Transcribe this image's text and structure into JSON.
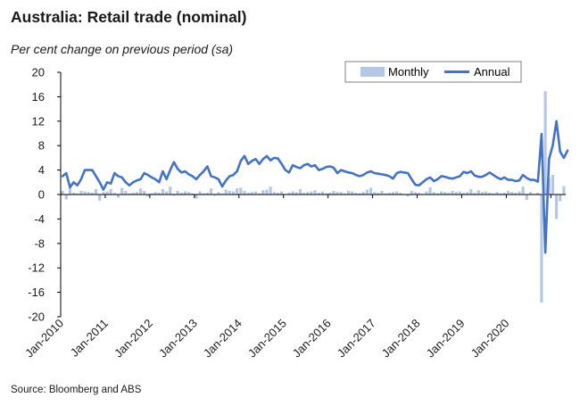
{
  "title": "Australia: Retail trade (nominal)",
  "subtitle": "Per cent change on previous period (sa)",
  "source": "Source: Bloomberg and ABS",
  "colors": {
    "monthly": "#b4c7e7",
    "annual": "#4472c4",
    "axis": "#000000"
  },
  "chart_data": {
    "type": "bar",
    "title": "Australia: Retail trade (nominal)",
    "ylabel": "Per cent change on previous period (sa)",
    "ylim": [
      -20,
      20
    ],
    "yticks": [
      20,
      16,
      12,
      8,
      4,
      0,
      -4,
      -8,
      -12,
      -16,
      -20
    ],
    "grid": false,
    "legend_position": "top-right",
    "x_start": "Jan-2010",
    "xtick_labels": [
      "Jan-2010",
      "Jan-2011",
      "Jan-2012",
      "Jan-2013",
      "Jan-2014",
      "Jan-2015",
      "Jan-2016",
      "Jan-2017",
      "Jan-2018",
      "Jan-2019",
      "Jan-2020"
    ],
    "series": [
      {
        "name": "Monthly",
        "type": "bar",
        "values": [
          0.6,
          -0.8,
          1.2,
          0.3,
          0.2,
          0.6,
          0.5,
          0.4,
          0.3,
          0.9,
          -1.0,
          0.4,
          0.5,
          0.9,
          0.3,
          -0.5,
          1.1,
          0.6,
          0.2,
          0.3,
          0.4,
          1.0,
          0.6,
          -0.3,
          0.2,
          0.4,
          0.3,
          0.9,
          0.5,
          1.3,
          -0.2,
          0.6,
          0.3,
          0.5,
          0.4,
          0.2,
          -0.7,
          0.5,
          0.2,
          0.3,
          1.0,
          -0.2,
          0.4,
          0.2,
          0.8,
          0.6,
          0.5,
          1.0,
          1.1,
          0.6,
          0.3,
          0.4,
          0.5,
          0.2,
          0.7,
          0.8,
          1.3,
          0.4,
          0.3,
          0.5,
          0.1,
          0.3,
          0.5,
          0.4,
          0.9,
          0.3,
          0.4,
          0.5,
          0.7,
          0.3,
          0.5,
          0.2,
          0.3,
          0.6,
          0.4,
          0.4,
          0.2,
          0.6,
          0.5,
          0.3,
          0.2,
          0.4,
          0.8,
          1.1,
          0.4,
          0.3,
          0.6,
          0.2,
          0.3,
          0.4,
          0.5,
          0.3,
          -0.1,
          -0.3,
          0.6,
          0.4,
          0.3,
          0.1,
          0.5,
          1.2,
          0.4,
          0.2,
          0.5,
          0.4,
          0.3,
          0.6,
          0.4,
          0.5,
          0.3,
          0.4,
          0.9,
          0.3,
          0.7,
          0.4,
          0.5,
          0.3,
          0.2,
          0.4,
          0.2,
          0.3,
          0.6,
          0.4,
          0.3,
          0.5,
          1.3,
          -0.9,
          0.4,
          0.1,
          0.3,
          -17.7,
          16.9,
          2.7,
          3.2,
          -4.0,
          -1.1,
          1.4
        ]
      },
      {
        "name": "Annual",
        "type": "line",
        "values": [
          3.0,
          3.5,
          1.2,
          2.0,
          1.5,
          2.5,
          4.0,
          4.0,
          4.0,
          3.0,
          2.0,
          0.8,
          2.0,
          1.8,
          3.5,
          3.0,
          2.8,
          2.0,
          1.5,
          2.0,
          2.3,
          2.5,
          3.5,
          3.2,
          2.8,
          2.5,
          2.0,
          3.8,
          2.5,
          4.0,
          5.3,
          4.2,
          3.6,
          3.8,
          3.3,
          3.0,
          2.5,
          3.2,
          3.8,
          4.6,
          3.0,
          2.8,
          2.5,
          1.3,
          2.3,
          3.0,
          3.2,
          3.8,
          5.5,
          6.3,
          5.0,
          5.5,
          5.8,
          5.0,
          5.8,
          6.3,
          5.6,
          6.0,
          5.9,
          5.0,
          4.0,
          3.6,
          4.8,
          4.5,
          4.3,
          4.8,
          5.0,
          4.6,
          4.8,
          4.0,
          4.2,
          4.5,
          4.6,
          4.4,
          3.5,
          4.0,
          3.8,
          3.6,
          3.5,
          3.2,
          3.0,
          3.2,
          3.6,
          3.8,
          3.5,
          3.4,
          3.3,
          3.2,
          3.0,
          2.6,
          3.5,
          3.7,
          3.6,
          3.5,
          2.5,
          1.6,
          1.5,
          2.0,
          2.5,
          2.8,
          2.2,
          2.5,
          3.0,
          2.9,
          2.7,
          2.6,
          2.8,
          3.0,
          3.7,
          3.5,
          3.8,
          3.1,
          2.9,
          2.9,
          3.2,
          3.6,
          3.2,
          2.8,
          2.5,
          2.8,
          2.4,
          2.4,
          2.2,
          2.3,
          3.2,
          2.7,
          2.4,
          2.4,
          2.1,
          9.9,
          -9.5,
          5.8,
          8.0,
          12.0,
          7.0,
          6.0,
          7.2
        ]
      }
    ]
  }
}
